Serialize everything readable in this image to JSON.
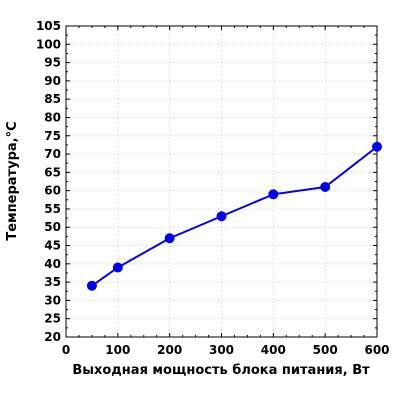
{
  "chart_data": {
    "type": "line",
    "xlabel": "Выходная мощность блока питания, Вт",
    "ylabel": "Температура,°С",
    "xlim": [
      0,
      600
    ],
    "ylim": [
      20,
      105
    ],
    "x_ticks": [
      0,
      100,
      200,
      300,
      400,
      500,
      600
    ],
    "y_ticks": [
      20,
      25,
      30,
      35,
      40,
      45,
      50,
      55,
      60,
      65,
      70,
      75,
      80,
      85,
      90,
      95,
      100,
      105
    ],
    "grid": true,
    "series": [
      {
        "color": "#0000ee",
        "x": [
          50,
          100,
          200,
          300,
          400,
          500,
          600
        ],
        "y": [
          34,
          39,
          47,
          53,
          59,
          61,
          72
        ]
      }
    ]
  }
}
